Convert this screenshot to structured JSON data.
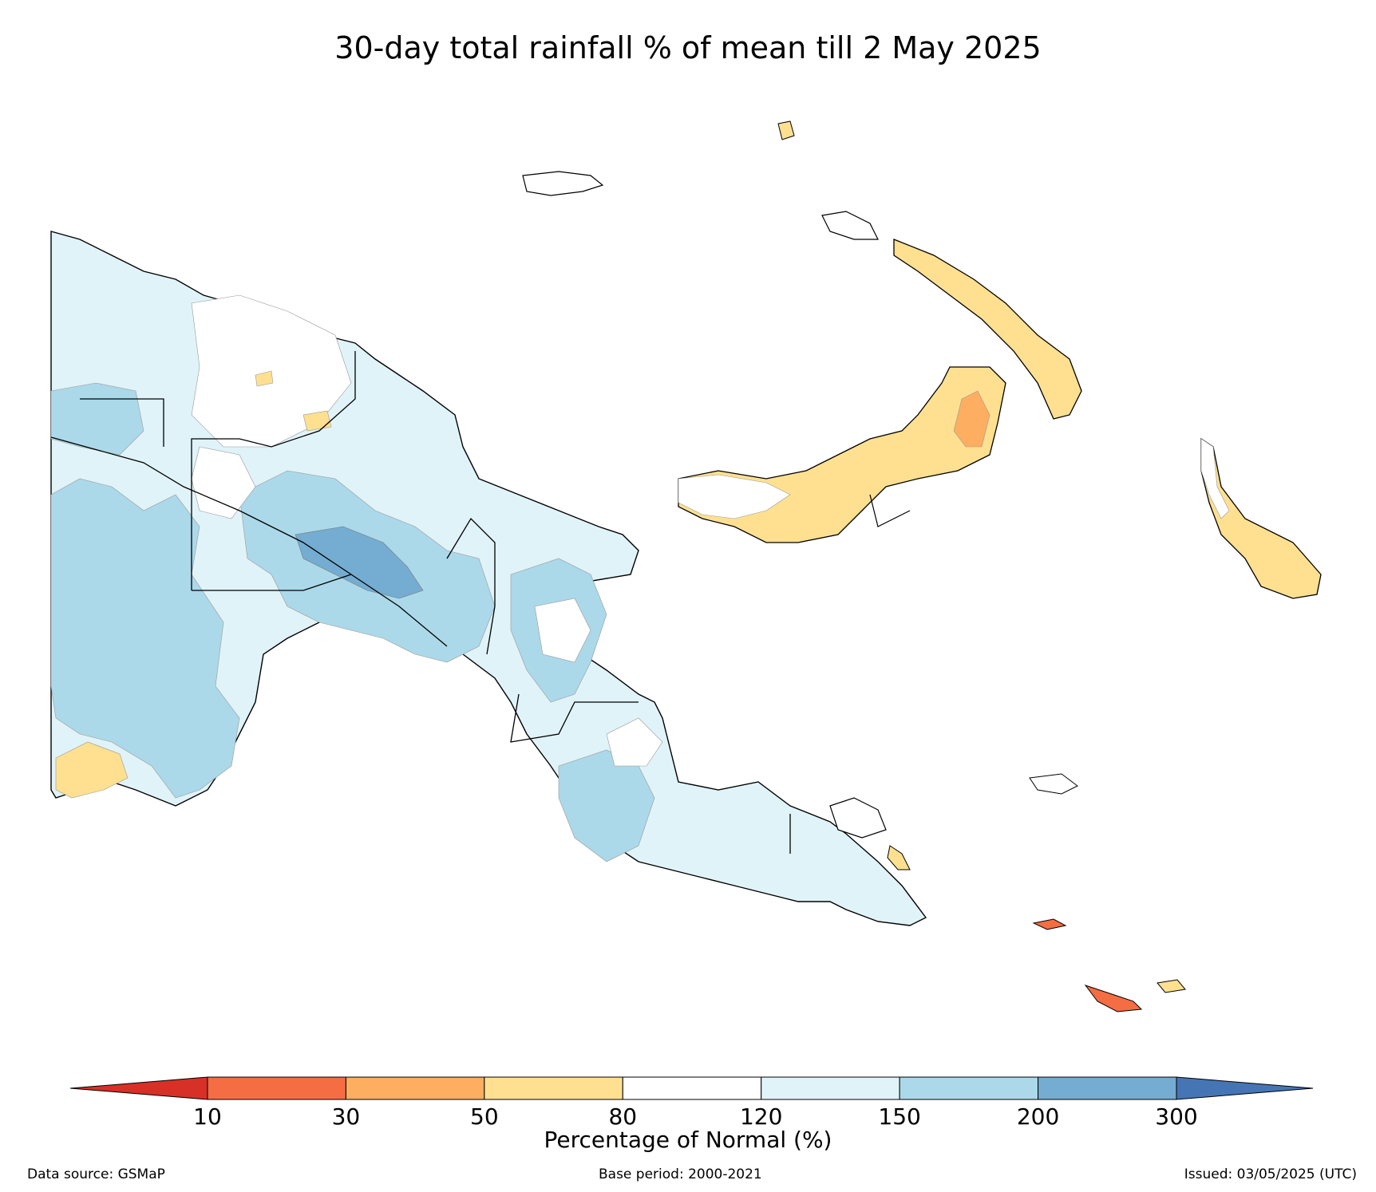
{
  "title": "30-day total rainfall % of mean till 2 May 2025",
  "colorbar": {
    "title": "Percentage of Normal (%)",
    "ticks": [
      "10",
      "30",
      "50",
      "80",
      "120",
      "150",
      "200",
      "300"
    ],
    "colors": {
      "below_10": "#d73027",
      "c10_30": "#f46d43",
      "c30_50": "#fdae61",
      "c50_80": "#fee090",
      "c80_120": "#ffffff",
      "c120_150": "#e0f3f8",
      "c150_200": "#abd9e9",
      "c200_300": "#74add1",
      "above_300": "#4575b4"
    }
  },
  "footer": {
    "source": "Data source: GSMaP",
    "base": "Base period: 2000-2021",
    "issued": "Issued: 03/05/2025 (UTC)"
  }
}
